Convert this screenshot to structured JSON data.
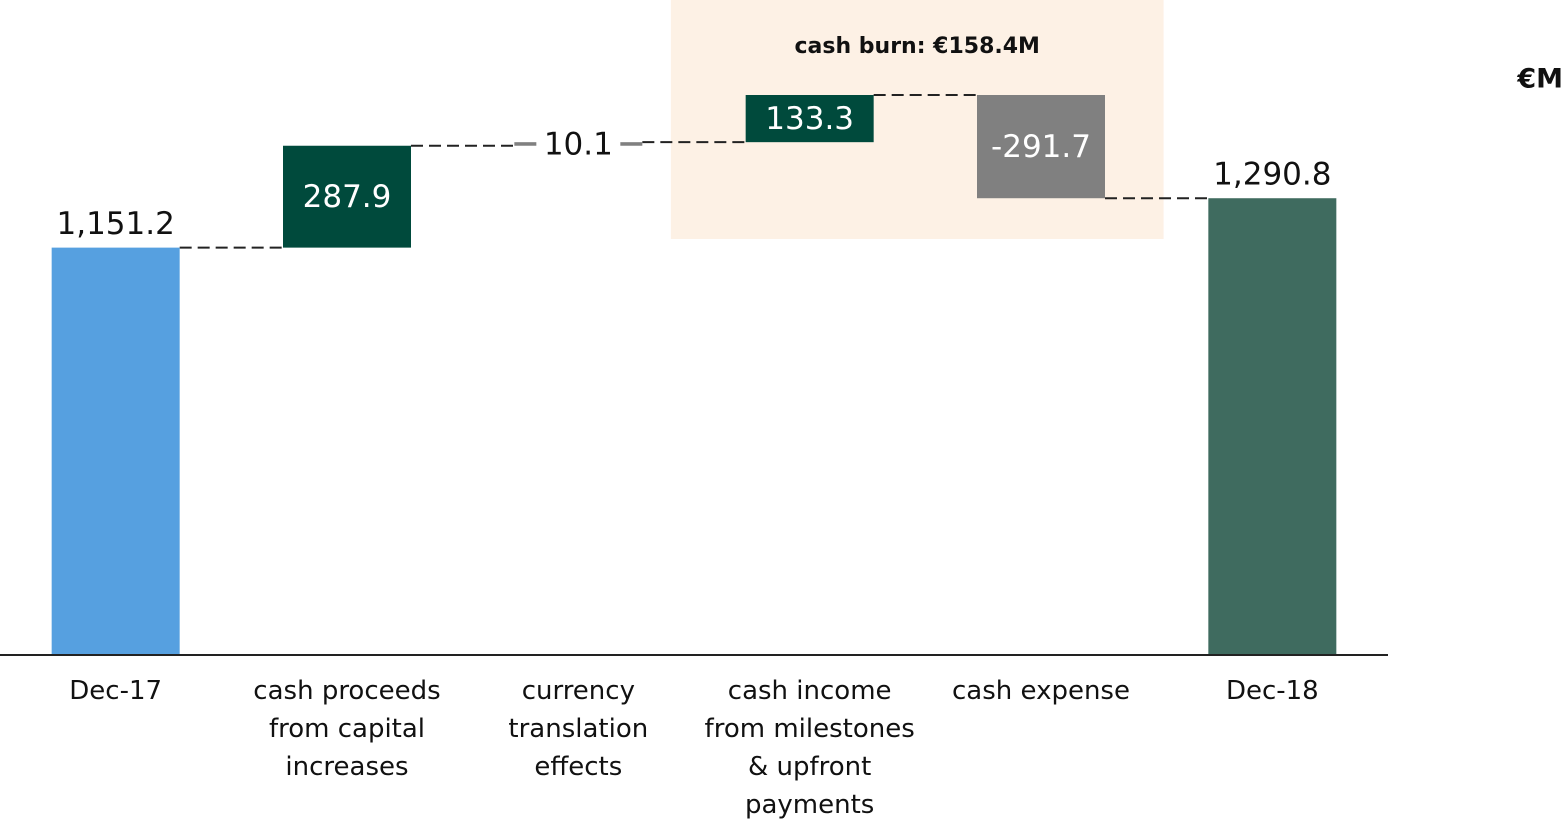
{
  "chart_data": {
    "type": "waterfall",
    "unit": "€M",
    "annotation": "cash burn: €158.4M",
    "categories": [
      "Dec-17",
      "cash proceeds from capital increases",
      "currency translation effects",
      "cash income from milestones & upfront payments",
      "cash expense",
      "Dec-18"
    ],
    "values": [
      1151.2,
      287.9,
      10.1,
      133.3,
      -291.7,
      1290.8
    ],
    "value_labels": [
      "1,151.2",
      "287.9",
      "10.1",
      "133.3",
      "-291.7",
      "1,290.8"
    ],
    "colors": [
      "#56a0e0",
      "#004a3c",
      "#808080",
      "#004a3c",
      "#808080",
      "#3f6b5f"
    ],
    "highlight_color": "#fdf1e5"
  }
}
